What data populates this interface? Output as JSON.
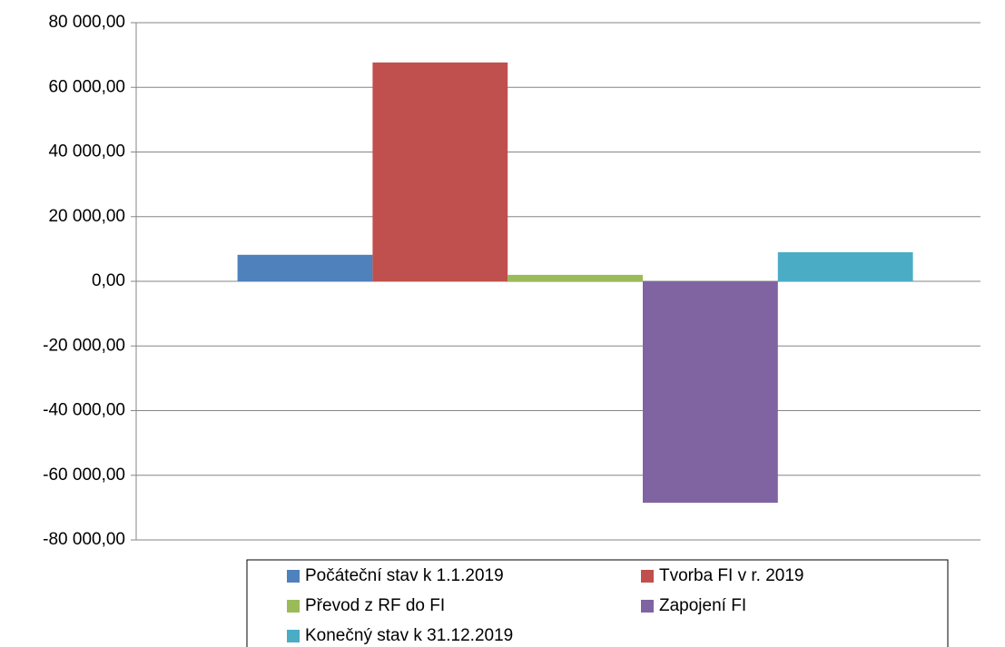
{
  "chart_data": {
    "type": "bar",
    "categories": [
      null
    ],
    "series": [
      {
        "name": "Počáteční stav k 1.1.2019",
        "color": "#4f81bd",
        "values": [
          8200
        ]
      },
      {
        "name": "Tvorba FI v r. 2019",
        "color": "#c0504d",
        "values": [
          67700
        ]
      },
      {
        "name": "Převod z RF do FI",
        "color": "#9bbb59",
        "values": [
          2000
        ]
      },
      {
        "name": "Zapojení FI",
        "color": "#8064a2",
        "values": [
          -68500
        ]
      },
      {
        "name": "Konečný stav k 31.12.2019",
        "color": "#4bacc6",
        "values": [
          9000
        ]
      }
    ],
    "ylim": [
      -80000,
      80000
    ],
    "yticks": [
      {
        "value": -80000,
        "label": "-80 000,00"
      },
      {
        "value": -60000,
        "label": "-60 000,00"
      },
      {
        "value": -40000,
        "label": "-40 000,00"
      },
      {
        "value": -20000,
        "label": "-20 000,00"
      },
      {
        "value": 0,
        "label": "0,00"
      },
      {
        "value": 20000,
        "label": "20 000,00"
      },
      {
        "value": 40000,
        "label": "40 000,00"
      },
      {
        "value": 60000,
        "label": "60 000,00"
      },
      {
        "value": 80000,
        "label": "80 000,00"
      }
    ],
    "grid": true,
    "legend": "bottom"
  }
}
